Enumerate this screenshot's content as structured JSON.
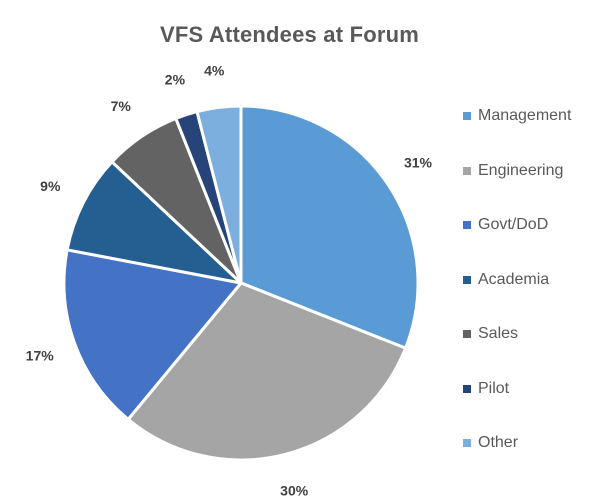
{
  "chart_data": {
    "type": "pie",
    "title": "VFS Attendees at Forum",
    "categories": [
      "Management",
      "Engineering",
      "Govt/DoD",
      "Academia",
      "Sales",
      "Pilot",
      "Other"
    ],
    "values": [
      31,
      30,
      17,
      9,
      7,
      2,
      4
    ],
    "data_labels": [
      "31%",
      "30%",
      "17%",
      "9%",
      "7%",
      "2%",
      "4%"
    ],
    "colors": [
      "#5b9bd5",
      "#a5a5a5",
      "#4472c4",
      "#255e91",
      "#636363",
      "#264478",
      "#7cafdd"
    ],
    "legend_position": "right",
    "start_angle": "top",
    "direction": "clockwise"
  }
}
